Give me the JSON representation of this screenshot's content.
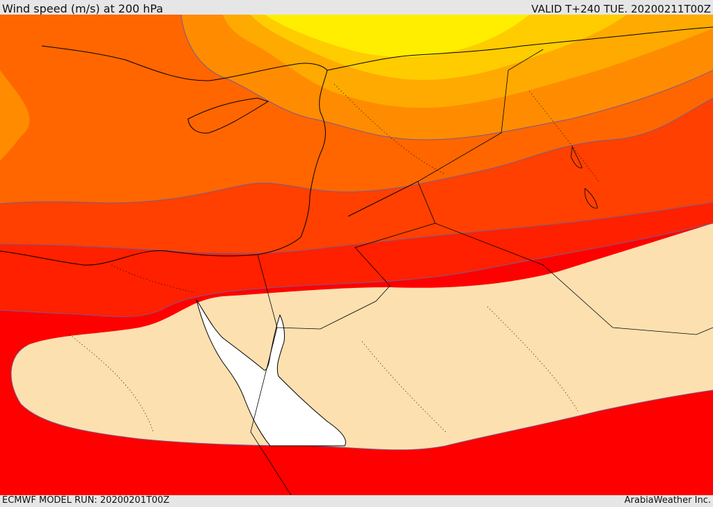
{
  "header": {
    "title": "Wind speed (m/s) at 200 hPa",
    "valid_time": "VALID T+240 TUE. 20200211T00Z"
  },
  "footer": {
    "model_run": "ECMWF MODEL RUN: 20200201T00Z",
    "credit": "ArabiaWeather Inc."
  },
  "map": {
    "variable": "wind speed",
    "level": "200 hPa",
    "colors": {
      "band_strongest_red": "#ff0000",
      "band_red": "#ff2000",
      "band_red_orange": "#ff4000",
      "band_orange_dark": "#ff6600",
      "band_orange": "#ff8c00",
      "band_orange_light": "#ffaa00",
      "band_yellow_orange": "#ffcc00",
      "band_yellow": "#ffee00",
      "band_calm": "#fde0b0",
      "water": "#ffffff",
      "coastline": "#000000",
      "contour": "#7a5a8a"
    }
  }
}
